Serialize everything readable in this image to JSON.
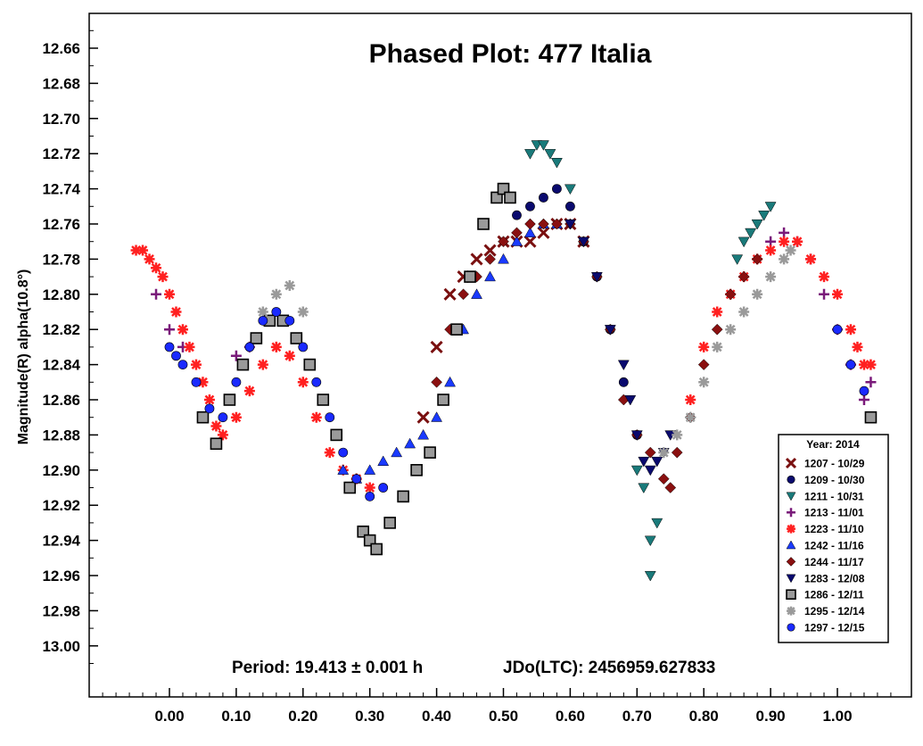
{
  "chart_data": {
    "type": "scatter",
    "title": "Phased Plot: 477 Italia",
    "xlabel": "",
    "ylabel": "Magnitude(R) alpha(10.8°)",
    "xlim": [
      -0.12,
      1.12
    ],
    "ylim": [
      13.04,
      12.64
    ],
    "y_inverted": true,
    "x_ticks": [
      "0.00",
      "0.10",
      "0.20",
      "0.30",
      "0.40",
      "0.50",
      "0.60",
      "0.70",
      "0.80",
      "0.90",
      "1.00"
    ],
    "y_ticks": [
      "12.66",
      "12.68",
      "12.70",
      "12.72",
      "12.74",
      "12.76",
      "12.78",
      "12.80",
      "12.82",
      "12.84",
      "12.86",
      "12.88",
      "12.90",
      "12.92",
      "12.94",
      "12.96",
      "12.98",
      "13.00"
    ],
    "grid": false,
    "legend_position": "bottom-right",
    "legend_title": "Year: 2014",
    "period_text": "Period: 19.413 ± 0.001 h",
    "epoch_text": "JDo(LTC): 2456959.627833",
    "series": [
      {
        "name": "1207 - 10/29",
        "color": "#7a1010",
        "marker": "x",
        "points": [
          [
            0.38,
            12.87
          ],
          [
            0.4,
            12.83
          ],
          [
            0.42,
            12.8
          ],
          [
            0.44,
            12.79
          ],
          [
            0.46,
            12.78
          ],
          [
            0.48,
            12.775
          ],
          [
            0.5,
            12.77
          ],
          [
            0.52,
            12.77
          ],
          [
            0.54,
            12.77
          ],
          [
            0.56,
            12.765
          ],
          [
            0.58,
            12.76
          ],
          [
            0.6,
            12.76
          ],
          [
            0.62,
            12.77
          ]
        ]
      },
      {
        "name": "1209 - 10/30",
        "color": "#0a0a6e",
        "marker": "circle",
        "points": [
          [
            0.52,
            12.755
          ],
          [
            0.54,
            12.75
          ],
          [
            0.56,
            12.745
          ],
          [
            0.58,
            12.74
          ],
          [
            0.6,
            12.75
          ],
          [
            0.62,
            12.77
          ],
          [
            0.64,
            12.79
          ],
          [
            0.66,
            12.82
          ],
          [
            0.68,
            12.85
          ],
          [
            0.7,
            12.88
          ]
        ]
      },
      {
        "name": "1211 - 10/31",
        "color": "#1a7a7a",
        "marker": "tri_down",
        "points": [
          [
            0.54,
            12.72
          ],
          [
            0.55,
            12.715
          ],
          [
            0.56,
            12.715
          ],
          [
            0.57,
            12.72
          ],
          [
            0.58,
            12.725
          ],
          [
            0.6,
            12.74
          ],
          [
            0.7,
            12.9
          ],
          [
            0.71,
            12.91
          ],
          [
            0.72,
            12.94
          ],
          [
            0.72,
            12.96
          ],
          [
            0.73,
            12.93
          ],
          [
            0.85,
            12.78
          ],
          [
            0.86,
            12.77
          ],
          [
            0.87,
            12.765
          ],
          [
            0.88,
            12.76
          ],
          [
            0.89,
            12.755
          ],
          [
            0.9,
            12.75
          ]
        ]
      },
      {
        "name": "1213 - 11/01",
        "color": "#7a1a7a",
        "marker": "plus",
        "points": [
          [
            -0.02,
            12.8
          ],
          [
            0.0,
            12.82
          ],
          [
            0.02,
            12.83
          ],
          [
            0.1,
            12.835
          ],
          [
            0.12,
            12.83
          ],
          [
            0.9,
            12.77
          ],
          [
            0.92,
            12.765
          ],
          [
            0.94,
            12.77
          ],
          [
            0.96,
            12.78
          ],
          [
            0.98,
            12.8
          ],
          [
            1.0,
            12.82
          ],
          [
            1.02,
            12.84
          ],
          [
            1.04,
            12.86
          ],
          [
            1.05,
            12.85
          ]
        ]
      },
      {
        "name": "1223 - 11/10",
        "color": "#ff2020",
        "marker": "star",
        "points": [
          [
            -0.05,
            12.775
          ],
          [
            -0.04,
            12.775
          ],
          [
            -0.03,
            12.78
          ],
          [
            -0.02,
            12.785
          ],
          [
            -0.01,
            12.79
          ],
          [
            0.0,
            12.8
          ],
          [
            0.01,
            12.81
          ],
          [
            0.02,
            12.82
          ],
          [
            0.03,
            12.83
          ],
          [
            0.04,
            12.84
          ],
          [
            0.05,
            12.85
          ],
          [
            0.06,
            12.86
          ],
          [
            0.07,
            12.875
          ],
          [
            0.08,
            12.88
          ],
          [
            0.1,
            12.87
          ],
          [
            0.12,
            12.855
          ],
          [
            0.14,
            12.84
          ],
          [
            0.16,
            12.83
          ],
          [
            0.18,
            12.835
          ],
          [
            0.2,
            12.85
          ],
          [
            0.22,
            12.87
          ],
          [
            0.24,
            12.89
          ],
          [
            0.26,
            12.9
          ],
          [
            0.28,
            12.905
          ],
          [
            0.3,
            12.91
          ],
          [
            0.78,
            12.86
          ],
          [
            0.8,
            12.83
          ],
          [
            0.82,
            12.81
          ],
          [
            0.84,
            12.8
          ],
          [
            0.86,
            12.79
          ],
          [
            0.88,
            12.78
          ],
          [
            0.9,
            12.775
          ],
          [
            0.92,
            12.77
          ],
          [
            0.94,
            12.77
          ],
          [
            0.96,
            12.78
          ],
          [
            0.98,
            12.79
          ],
          [
            1.0,
            12.8
          ],
          [
            1.02,
            12.82
          ],
          [
            1.03,
            12.83
          ],
          [
            1.04,
            12.84
          ],
          [
            1.05,
            12.84
          ]
        ]
      },
      {
        "name": "1242 - 11/16",
        "color": "#1a3aff",
        "marker": "tri_up",
        "points": [
          [
            0.26,
            12.9
          ],
          [
            0.28,
            12.905
          ],
          [
            0.3,
            12.9
          ],
          [
            0.32,
            12.895
          ],
          [
            0.34,
            12.89
          ],
          [
            0.36,
            12.885
          ],
          [
            0.38,
            12.88
          ],
          [
            0.4,
            12.87
          ],
          [
            0.42,
            12.85
          ],
          [
            0.44,
            12.82
          ],
          [
            0.46,
            12.8
          ],
          [
            0.48,
            12.79
          ],
          [
            0.5,
            12.78
          ],
          [
            0.52,
            12.77
          ],
          [
            0.54,
            12.765
          ],
          [
            0.56,
            12.76
          ],
          [
            0.58,
            12.76
          ]
        ]
      },
      {
        "name": "1244 - 11/17",
        "color": "#8a1010",
        "marker": "diamond",
        "points": [
          [
            0.4,
            12.85
          ],
          [
            0.42,
            12.82
          ],
          [
            0.44,
            12.8
          ],
          [
            0.46,
            12.79
          ],
          [
            0.48,
            12.78
          ],
          [
            0.5,
            12.77
          ],
          [
            0.52,
            12.765
          ],
          [
            0.54,
            12.76
          ],
          [
            0.56,
            12.76
          ],
          [
            0.58,
            12.76
          ],
          [
            0.6,
            12.76
          ],
          [
            0.62,
            12.77
          ],
          [
            0.64,
            12.79
          ],
          [
            0.66,
            12.82
          ],
          [
            0.68,
            12.86
          ],
          [
            0.7,
            12.88
          ],
          [
            0.72,
            12.89
          ],
          [
            0.74,
            12.905
          ],
          [
            0.75,
            12.91
          ],
          [
            0.76,
            12.89
          ],
          [
            0.78,
            12.87
          ],
          [
            0.8,
            12.84
          ],
          [
            0.82,
            12.82
          ],
          [
            0.84,
            12.8
          ],
          [
            0.86,
            12.79
          ],
          [
            0.88,
            12.78
          ]
        ]
      },
      {
        "name": "1283 - 12/08",
        "color": "#0a0a6e",
        "marker": "tri_down",
        "points": [
          [
            0.6,
            12.76
          ],
          [
            0.62,
            12.77
          ],
          [
            0.64,
            12.79
          ],
          [
            0.66,
            12.82
          ],
          [
            0.68,
            12.84
          ],
          [
            0.69,
            12.86
          ],
          [
            0.7,
            12.88
          ],
          [
            0.71,
            12.895
          ],
          [
            0.72,
            12.9
          ],
          [
            0.73,
            12.895
          ],
          [
            0.74,
            12.89
          ],
          [
            0.75,
            12.88
          ]
        ]
      },
      {
        "name": "1286 - 12/11",
        "color": "#9a9a9a",
        "marker": "square",
        "points": [
          [
            0.05,
            12.87
          ],
          [
            0.07,
            12.885
          ],
          [
            0.09,
            12.86
          ],
          [
            0.11,
            12.84
          ],
          [
            0.13,
            12.825
          ],
          [
            0.15,
            12.815
          ],
          [
            0.17,
            12.815
          ],
          [
            0.19,
            12.825
          ],
          [
            0.21,
            12.84
          ],
          [
            0.23,
            12.86
          ],
          [
            0.25,
            12.88
          ],
          [
            0.27,
            12.91
          ],
          [
            0.29,
            12.935
          ],
          [
            0.3,
            12.94
          ],
          [
            0.31,
            12.945
          ],
          [
            0.33,
            12.93
          ],
          [
            0.35,
            12.915
          ],
          [
            0.37,
            12.9
          ],
          [
            0.39,
            12.89
          ],
          [
            0.41,
            12.86
          ],
          [
            0.43,
            12.82
          ],
          [
            0.45,
            12.79
          ],
          [
            0.47,
            12.76
          ],
          [
            0.49,
            12.745
          ],
          [
            0.5,
            12.74
          ],
          [
            0.51,
            12.745
          ],
          [
            1.05,
            12.87
          ]
        ]
      },
      {
        "name": "1295 - 12/14",
        "color": "#9a9a9a",
        "marker": "star",
        "points": [
          [
            0.14,
            12.81
          ],
          [
            0.16,
            12.8
          ],
          [
            0.18,
            12.795
          ],
          [
            0.2,
            12.81
          ],
          [
            0.74,
            12.89
          ],
          [
            0.76,
            12.88
          ],
          [
            0.78,
            12.87
          ],
          [
            0.8,
            12.85
          ],
          [
            0.82,
            12.83
          ],
          [
            0.84,
            12.82
          ],
          [
            0.86,
            12.81
          ],
          [
            0.88,
            12.8
          ],
          [
            0.9,
            12.79
          ],
          [
            0.92,
            12.78
          ],
          [
            0.93,
            12.775
          ]
        ]
      },
      {
        "name": "1297 - 12/15",
        "color": "#1a2aff",
        "marker": "circle",
        "points": [
          [
            0.0,
            12.83
          ],
          [
            0.01,
            12.835
          ],
          [
            0.02,
            12.84
          ],
          [
            0.04,
            12.85
          ],
          [
            0.06,
            12.865
          ],
          [
            0.08,
            12.87
          ],
          [
            0.1,
            12.85
          ],
          [
            0.12,
            12.83
          ],
          [
            0.14,
            12.815
          ],
          [
            0.16,
            12.81
          ],
          [
            0.18,
            12.815
          ],
          [
            0.2,
            12.83
          ],
          [
            0.22,
            12.85
          ],
          [
            0.24,
            12.87
          ],
          [
            0.26,
            12.89
          ],
          [
            0.28,
            12.905
          ],
          [
            0.3,
            12.915
          ],
          [
            0.32,
            12.91
          ],
          [
            1.0,
            12.82
          ],
          [
            1.02,
            12.84
          ],
          [
            1.04,
            12.855
          ]
        ]
      }
    ]
  }
}
